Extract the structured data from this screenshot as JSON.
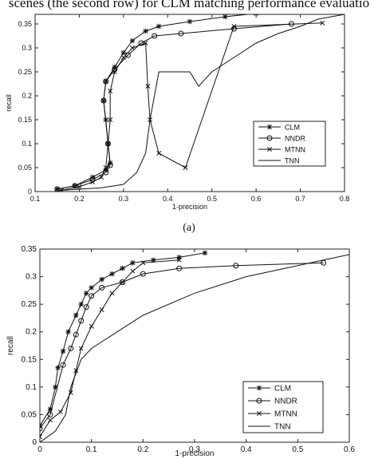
{
  "header_text": "scenes (the second row) for CLM matching performance evaluatio",
  "panel_a_label": "(a)",
  "chart_data": [
    {
      "type": "line",
      "xlabel": "1-precision",
      "ylabel": "recall",
      "xlim": [
        0.1,
        0.8
      ],
      "ylim": [
        0,
        0.37
      ],
      "xticks": [
        "0.1",
        "0.2",
        "0.3",
        "0.4",
        "0.5",
        "0.6",
        "0.7",
        "0.8"
      ],
      "yticks": [
        "0",
        "0.05",
        "0.1",
        "0.15",
        "0.2",
        "0.25",
        "0.3",
        "0.35"
      ],
      "legend_position": "right",
      "series": [
        {
          "name": "CLM",
          "marker": "star",
          "x": [
            0.15,
            0.19,
            0.23,
            0.26,
            0.27,
            0.265,
            0.26,
            0.255,
            0.26,
            0.28,
            0.3,
            0.32,
            0.35,
            0.38,
            0.45,
            0.53,
            0.6
          ],
          "y": [
            0.005,
            0.012,
            0.03,
            0.045,
            0.06,
            0.1,
            0.15,
            0.19,
            0.23,
            0.26,
            0.29,
            0.315,
            0.335,
            0.345,
            0.355,
            0.365,
            0.372
          ]
        },
        {
          "name": "NNDR",
          "marker": "circle",
          "x": [
            0.15,
            0.19,
            0.23,
            0.26,
            0.27,
            0.265,
            0.255,
            0.26,
            0.28,
            0.31,
            0.34,
            0.37,
            0.43,
            0.55,
            0.68
          ],
          "y": [
            0.005,
            0.012,
            0.025,
            0.04,
            0.055,
            0.1,
            0.19,
            0.23,
            0.255,
            0.285,
            0.31,
            0.325,
            0.33,
            0.34,
            0.35
          ]
        },
        {
          "name": "MTNN",
          "marker": "x",
          "x": [
            0.16,
            0.2,
            0.23,
            0.25,
            0.26,
            0.265,
            0.27,
            0.27,
            0.28,
            0.3,
            0.32,
            0.35,
            0.355,
            0.36,
            0.38,
            0.44,
            0.55,
            0.75
          ],
          "y": [
            0.003,
            0.01,
            0.02,
            0.03,
            0.05,
            0.1,
            0.15,
            0.21,
            0.25,
            0.28,
            0.3,
            0.31,
            0.22,
            0.15,
            0.08,
            0.05,
            0.345,
            0.352
          ]
        },
        {
          "name": "TNN",
          "marker": "none",
          "x": [
            0.15,
            0.25,
            0.3,
            0.33,
            0.35,
            0.36,
            0.38,
            0.45,
            0.47,
            0.5,
            0.55,
            0.6,
            0.65,
            0.7,
            0.74,
            0.8
          ],
          "y": [
            0.002,
            0.008,
            0.015,
            0.04,
            0.08,
            0.15,
            0.25,
            0.25,
            0.22,
            0.25,
            0.28,
            0.31,
            0.33,
            0.345,
            0.36,
            0.37
          ]
        }
      ]
    },
    {
      "type": "line",
      "xlabel": "1-precision",
      "ylabel": "recall",
      "xlim": [
        0,
        0.6
      ],
      "ylim": [
        0,
        0.35
      ],
      "xticks": [
        "0",
        "0.1",
        "0.2",
        "0.3",
        "0.4",
        "0.5",
        "0.6"
      ],
      "yticks": [
        "0",
        "0.05",
        "0.1",
        "0.15",
        "0.2",
        "0.25",
        "0.3",
        "0.35"
      ],
      "legend_position": "bottom-right",
      "series": [
        {
          "name": "CLM",
          "marker": "star",
          "x": [
            0.0,
            0.02,
            0.03,
            0.035,
            0.045,
            0.055,
            0.07,
            0.08,
            0.09,
            0.1,
            0.12,
            0.14,
            0.16,
            0.18,
            0.22,
            0.27,
            0.32
          ],
          "y": [
            0.03,
            0.06,
            0.1,
            0.135,
            0.165,
            0.2,
            0.23,
            0.25,
            0.27,
            0.28,
            0.295,
            0.305,
            0.315,
            0.325,
            0.33,
            0.335,
            0.343
          ]
        },
        {
          "name": "NNDR",
          "marker": "circle",
          "x": [
            0.0,
            0.02,
            0.045,
            0.06,
            0.07,
            0.08,
            0.09,
            0.1,
            0.12,
            0.16,
            0.2,
            0.27,
            0.38,
            0.55
          ],
          "y": [
            0.025,
            0.05,
            0.14,
            0.17,
            0.195,
            0.22,
            0.245,
            0.265,
            0.28,
            0.29,
            0.305,
            0.315,
            0.32,
            0.325
          ]
        },
        {
          "name": "MTNN",
          "marker": "x",
          "x": [
            0.0,
            0.02,
            0.04,
            0.06,
            0.07,
            0.08,
            0.1,
            0.12,
            0.14,
            0.16,
            0.18,
            0.2,
            0.27
          ],
          "y": [
            0.01,
            0.04,
            0.055,
            0.09,
            0.13,
            0.17,
            0.21,
            0.24,
            0.27,
            0.29,
            0.31,
            0.325,
            0.33
          ]
        },
        {
          "name": "TNN",
          "marker": "none",
          "x": [
            0.0,
            0.03,
            0.05,
            0.06,
            0.08,
            0.1,
            0.15,
            0.2,
            0.3,
            0.4,
            0.5,
            0.6
          ],
          "y": [
            0.0,
            0.02,
            0.05,
            0.1,
            0.15,
            0.17,
            0.2,
            0.23,
            0.27,
            0.3,
            0.32,
            0.34
          ]
        }
      ]
    }
  ]
}
